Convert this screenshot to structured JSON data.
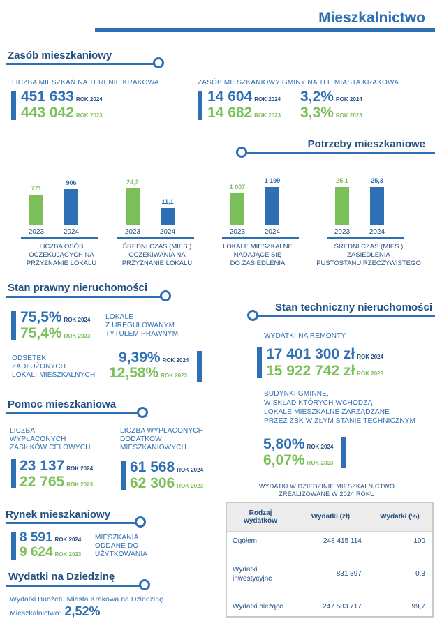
{
  "header": {
    "title": "Mieszkalnictwo"
  },
  "zasob": {
    "title": "Zasób mieszkaniowy",
    "left_label": "LICZBA MIESZKAŃ NA TERENIE KRAKOWA",
    "left_val_2024": "451 633",
    "left_yr_2024": "ROK 2024",
    "left_val_2023": "443 042",
    "left_yr_2023": "ROK 2023",
    "right_label": "ZASÓB MIESZKANIOWY GMINY NA TLE MIASTA KRAKOWA",
    "right_val_2024": "14 604",
    "right_yr_2024": "ROK 2024",
    "right_val_2023": "14 682",
    "right_yr_2023": "ROK 2023",
    "right_pct_2024": "3,2%",
    "right_pct_yr_2024": "ROK 2024",
    "right_pct_2023": "3,3%",
    "right_pct_yr_2023": "ROK 2023"
  },
  "potrzeby": {
    "title": "Potrzeby mieszkaniowe"
  },
  "chart_data": [
    {
      "type": "bar",
      "categories": [
        "2023",
        "2024"
      ],
      "values": [
        771,
        906
      ],
      "value_labels": [
        "771",
        "906"
      ],
      "title": "LICZBA OSÓB OCZEKUJĄCYCH NA PRZYZNANIE LOKALU",
      "caption": [
        "LICZBA OSÓB",
        "OCZEKUJĄCYCH NA",
        "PRZYZNANIE LOKALU"
      ],
      "ylim": [
        0,
        1000
      ]
    },
    {
      "type": "bar",
      "categories": [
        "2023",
        "2024"
      ],
      "values": [
        24.2,
        11.1
      ],
      "value_labels": [
        "24,2",
        "11,1"
      ],
      "title": "ŚREDNI CZAS (MIES.) OCZEKIWANIA NA PRZYZNANIE LOKALU",
      "caption": [
        "ŚREDNI CZAS (MIES.)",
        "OCZEKIWANIA NA",
        "PRZYZNANIE LOKALU"
      ],
      "ylim": [
        0,
        26
      ]
    },
    {
      "type": "bar",
      "categories": [
        "2023",
        "2024"
      ],
      "values": [
        1007,
        1199
      ],
      "value_labels": [
        "1 007",
        "1 199"
      ],
      "title": "LOKALE MIESZKALNE NADAJĄCE SIĘ DO ZASIEDLENIA",
      "caption": [
        "LOKALE MIESZKALNE",
        "NADAJĄCE SIĘ",
        "DO ZASIEDLENIA"
      ],
      "ylim": [
        0,
        1250
      ]
    },
    {
      "type": "bar",
      "categories": [
        "2023",
        "2024"
      ],
      "values": [
        25.1,
        25.3
      ],
      "value_labels": [
        "25,1",
        "25,3"
      ],
      "title": "ŚREDNI CZAS (MIES.) ZASIEDLENIA PUSTOSTANU RZECZYWISTEGO",
      "caption": [
        "ŚREDNI CZAS (MIES.)",
        "ZASIEDLENIA",
        "PUSTOSTANU RZECZYWISTEGO"
      ],
      "ylim": [
        0,
        26
      ]
    }
  ],
  "prawny": {
    "title": "Stan prawny nieruchomości",
    "v1_2024": "75,5%",
    "y1_2024": "ROK 2024",
    "v1_2023": "75,4%",
    "y1_2023": "ROK 2023",
    "label1": [
      "LOKALE",
      "Z UREGULOWANYM",
      "TYTUŁEM PRAWNYM"
    ],
    "label2": [
      "ODSETEK",
      "ZADŁUŻONYCH",
      "LOKALI MIESZKALNYCH"
    ],
    "v2_2024": "9,39%",
    "y2_2024": "ROK 2024",
    "v2_2023": "12,58%",
    "y2_2023": "ROK 2023"
  },
  "techniczny": {
    "title": "Stan techniczny nieruchomości",
    "label1": "WYDATKI NA REMONTY",
    "v1_2024": "17 401 300 zł",
    "y1_2024": "ROK 2024",
    "v1_2023": "15 922 742 zł",
    "y1_2023": "ROK 2023",
    "label2": [
      "BUDYNKI GMINNE,",
      "W SKŁAD KTÓRYCH WCHODZĄ",
      "LOKALE MIESZKALNE ZARZĄDZANE",
      "PRZEZ ZBK W ZŁYM STANIE TECHNICZNYM"
    ],
    "v2_2024": "5,80%",
    "y2_2024": "ROK 2024",
    "v2_2023": "6,07%",
    "y2_2023": "ROK 2023"
  },
  "pomoc": {
    "title": "Pomoc mieszkaniowa",
    "label1": [
      "LICZBA",
      "WYPŁACONYCH",
      "ZASIŁKÓW CELOWYCH"
    ],
    "v1_2024": "23 137",
    "y1_2024": "ROK 2024",
    "v1_2023": "22 765",
    "y1_2023": "ROK 2023",
    "label2": [
      "LICZBA WYPŁACONYCH",
      "DODATKÓW",
      "MIESZKANIOWYCH"
    ],
    "v2_2024": "61 568",
    "y2_2024": "ROK 2024",
    "v2_2023": "62 306",
    "y2_2023": "ROK 2023"
  },
  "rynek": {
    "title": "Rynek mieszkaniowy",
    "v_2024": "8 591",
    "y_2024": "ROK 2024",
    "v_2023": "9 624",
    "y_2023": "ROK 2023",
    "label": [
      "MIESZKANIA",
      "ODDANE DO",
      "UŻYTKOWANIA"
    ]
  },
  "wydatki": {
    "title": "Wydatki na Dziedzinę",
    "text1": "Wydatki Budżetu Miasta Krakowa na Dziedzinę",
    "text2": "Mieszkalnictwo:",
    "value": "2,52%"
  },
  "table": {
    "caption1": "WYDATKI W DZIEDZINIE MIESZKALNICTWO",
    "caption2": "ZREALIZOWANE W 2024 ROKU",
    "headers": [
      "Rodzaj wydatków",
      "Wydatki (zł)",
      "Wydatki (%)"
    ],
    "rows": [
      [
        "Ogółem",
        "248 415 114",
        "100"
      ],
      [
        "Wydatki inwestycyjne",
        "831 397",
        "0,3"
      ],
      [
        "Wydatki bieżące",
        "247 583 717",
        "99,7"
      ]
    ]
  },
  "colors": {
    "blue": "#2f6fb3",
    "green": "#7bbf5a",
    "dark": "#244f80"
  }
}
